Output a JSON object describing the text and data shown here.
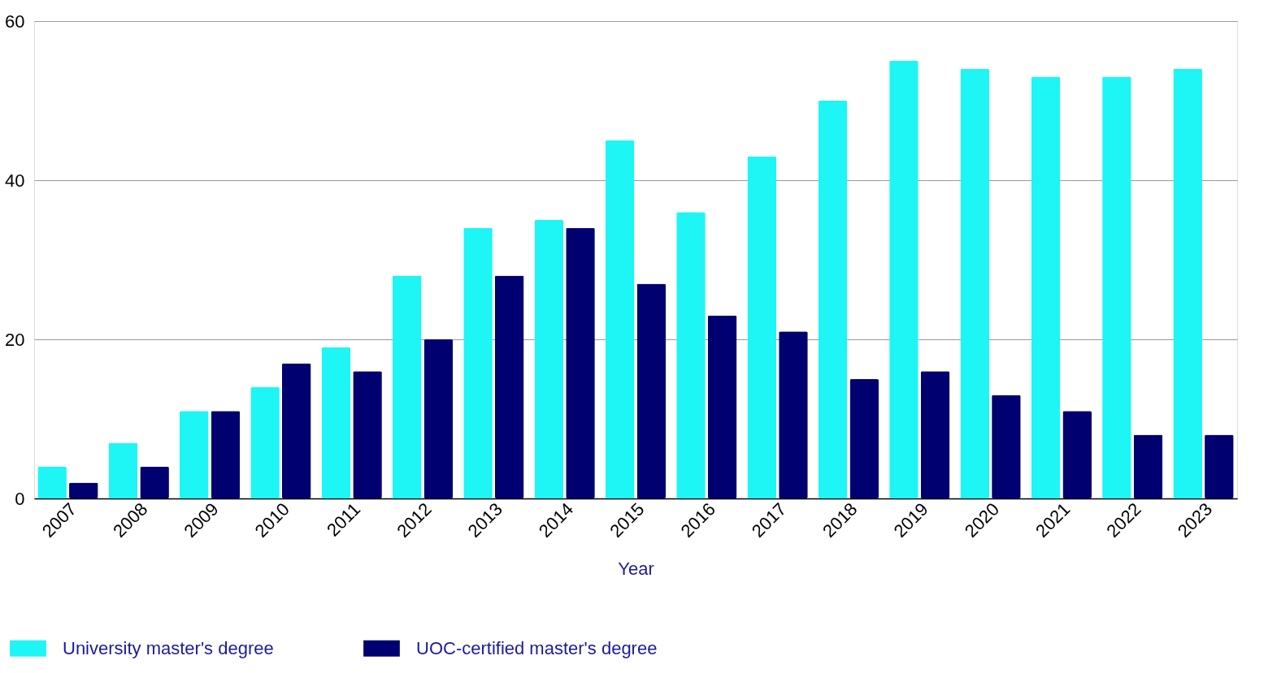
{
  "chart_data": {
    "type": "bar",
    "xlabel": "Year",
    "categories": [
      "2007",
      "2008",
      "2009",
      "2010",
      "2011",
      "2012",
      "2013",
      "2014",
      "2015",
      "2016",
      "2017",
      "2018",
      "2019",
      "2020",
      "2021",
      "2022",
      "2023"
    ],
    "series": [
      {
        "name": "University master's degree",
        "color": "#1ef5f5",
        "values": [
          4,
          7,
          11,
          14,
          19,
          28,
          34,
          35,
          45,
          36,
          43,
          50,
          55,
          54,
          53,
          53,
          54
        ]
      },
      {
        "name": "UOC-certified master's degree",
        "color": "#000070",
        "values": [
          2,
          4,
          11,
          17,
          16,
          20,
          28,
          34,
          27,
          23,
          21,
          15,
          16,
          13,
          11,
          8,
          8
        ]
      }
    ],
    "ylim": [
      0,
      60
    ],
    "yticks": [
      0,
      20,
      40,
      60
    ],
    "grid": "y",
    "legend": "bottom left"
  }
}
